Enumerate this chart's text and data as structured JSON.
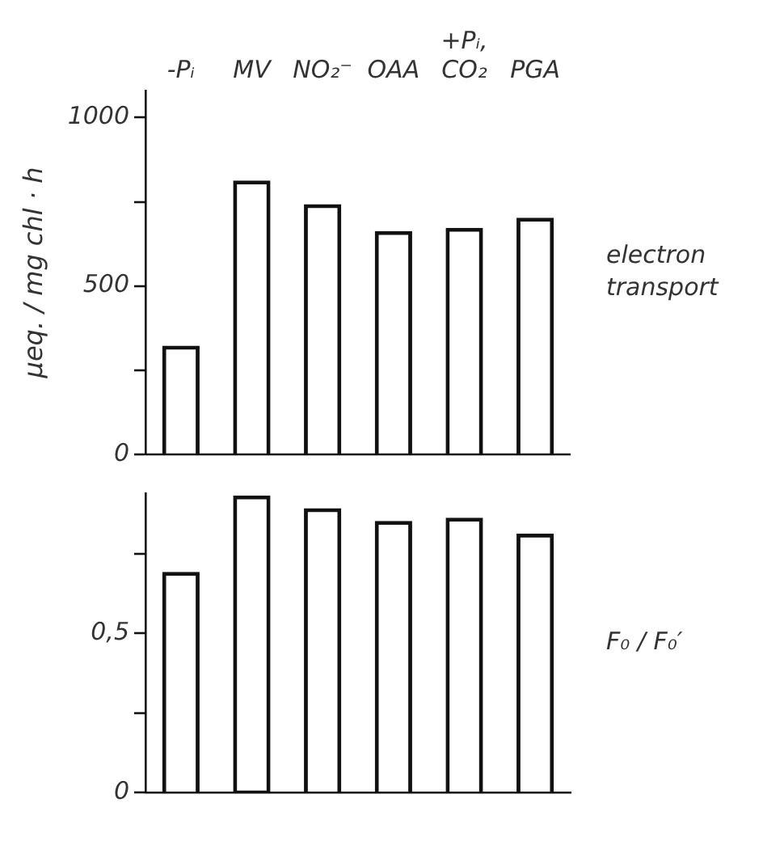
{
  "chart_data": [
    {
      "type": "bar",
      "ylabel": "µeq. / mg chl · h",
      "categories": [
        "-Pᵢ",
        "MV",
        "NO₂⁻",
        "OAA",
        "+Pᵢ, CO₂",
        "PGA"
      ],
      "values": [
        320,
        810,
        740,
        660,
        670,
        700
      ],
      "color": "#111111",
      "ylim": [
        0,
        1080
      ],
      "yticks": [
        0,
        {
          "value": 250,
          "label": null
        },
        500,
        {
          "value": 750,
          "label": null
        },
        1000
      ],
      "grid": false,
      "annotations": [
        "electron transport"
      ]
    },
    {
      "type": "bar",
      "categories": [
        null,
        null,
        null,
        null,
        null,
        null
      ],
      "values": [
        0.69,
        0.93,
        0.89,
        0.85,
        0.86,
        0.81
      ],
      "color": "#111111",
      "ylim": [
        0,
        0.94
      ],
      "yticks": [
        0,
        {
          "value": 0.25,
          "label": null
        },
        {
          "value": 0.5,
          "label": "0,5"
        },
        {
          "value": 0.75,
          "label": null
        }
      ],
      "grid": false,
      "annotations": [
        "F₀ / F₀′"
      ]
    }
  ]
}
